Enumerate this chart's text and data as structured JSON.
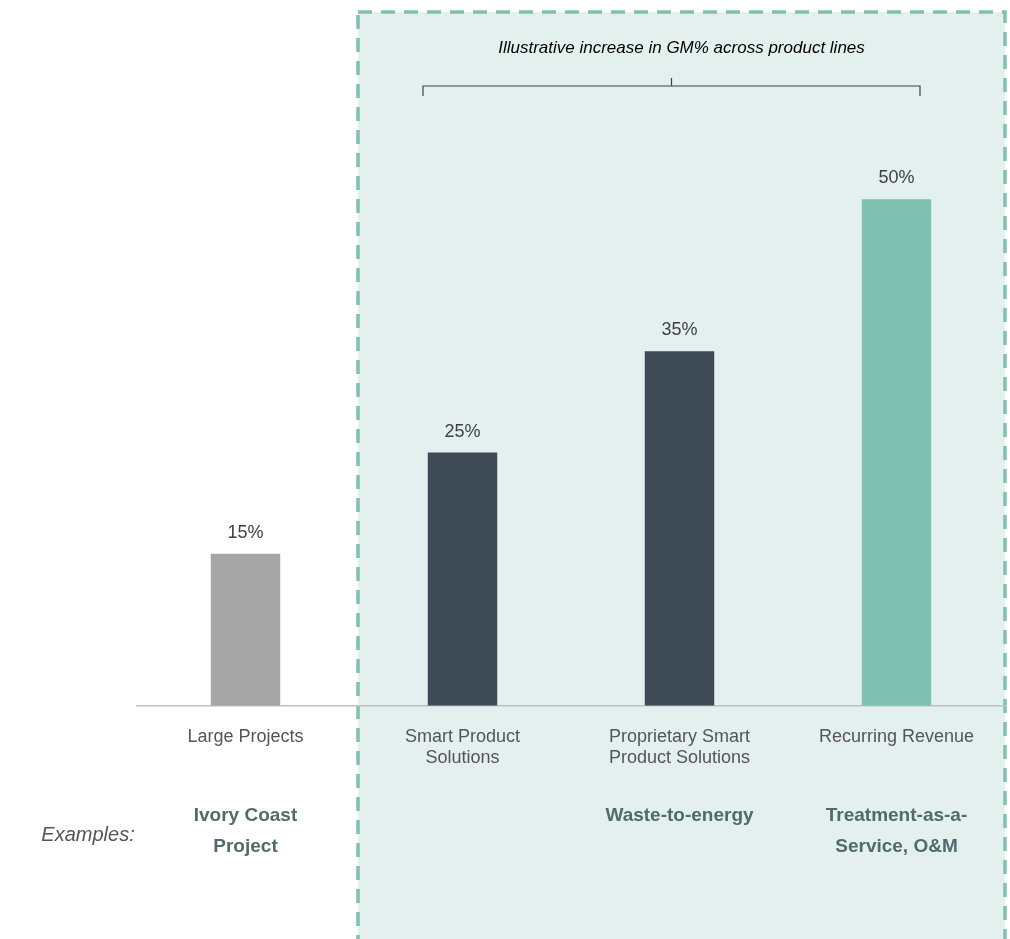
{
  "chart_data": {
    "type": "bar",
    "categories": [
      "Large Projects",
      "Smart Product Solutions",
      "Proprietary Smart Product Solutions",
      "Recurring Revenue"
    ],
    "values": [
      15,
      25,
      35,
      50
    ],
    "colors": [
      "#a6a6a6",
      "#3d4a55",
      "#3d4a55",
      "#7fc1b0"
    ],
    "tick_labels": "x",
    "grid": false,
    "legend": false,
    "value_labels": [
      "15%",
      "25%",
      "35%",
      "50%"
    ],
    "bands": [
      {
        "axis": "x",
        "from": "Smart Product Solutions",
        "to": "Recurring Revenue",
        "label": "Illustrative increase in GM% across product lines",
        "color": "#e3f0ee"
      }
    ],
    "annotations": [
      "Examples:",
      "Ivory Coast Project",
      null,
      "Waste-to-energy",
      "Treatment-as-a-Service, O&M"
    ]
  }
}
